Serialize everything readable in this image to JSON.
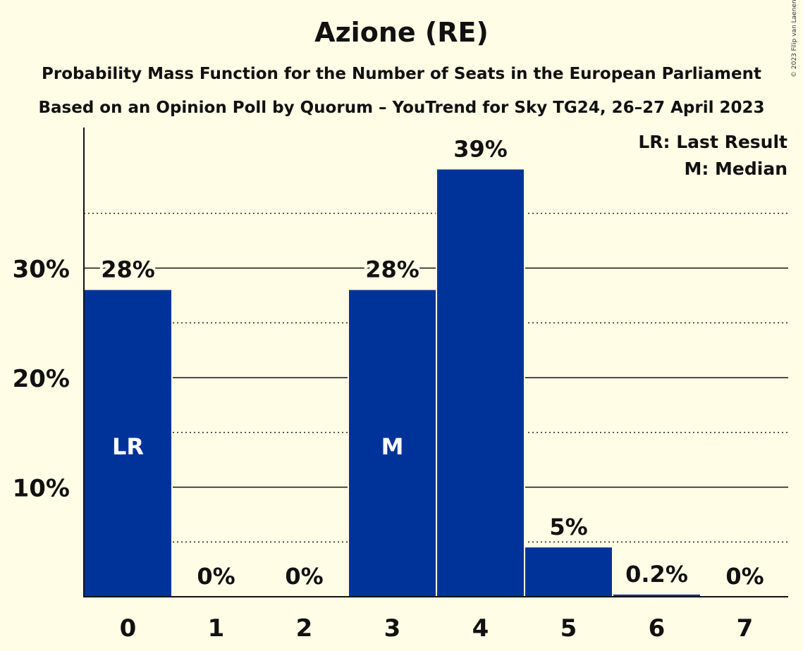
{
  "chart_data": {
    "type": "bar",
    "title": "Azione (RE)",
    "subtitle": "Probability Mass Function for the Number of Seats in the European Parliament",
    "subtitle2": "Based on an Opinion Poll by Quorum – YouTrend for Sky TG24, 26–27 April 2023",
    "copyright": "© 2023 Filip van Laenen",
    "categories": [
      "0",
      "1",
      "2",
      "3",
      "4",
      "5",
      "6",
      "7"
    ],
    "values": [
      28,
      0,
      0,
      28,
      39,
      4.5,
      0.2,
      0
    ],
    "value_labels": [
      "28%",
      "0%",
      "0%",
      "28%",
      "39%",
      "5%",
      "0.2%",
      "0%"
    ],
    "bar_markers": [
      "LR",
      "",
      "",
      "M",
      "",
      "",
      "",
      ""
    ],
    "y_ticks": [
      10,
      20,
      30
    ],
    "y_tick_labels": [
      "10%",
      "20%",
      "30%"
    ],
    "y_minor_ticks": [
      5,
      15,
      25,
      35
    ],
    "ylim": [
      0,
      42.5
    ],
    "legend": [
      "LR: Last Result",
      "M: Median"
    ],
    "legend_position": "top-right",
    "grid": true,
    "colors": {
      "bar": "#003399",
      "background": "#fffde6",
      "text": "#111111",
      "marker_text": "#ffffff"
    }
  }
}
